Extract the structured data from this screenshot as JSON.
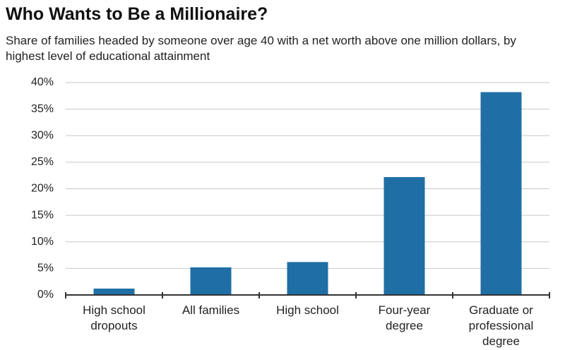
{
  "chart_data": {
    "type": "bar",
    "title": "Who Wants to Be a Millionaire?",
    "subtitle": "Share of families headed by someone over age 40 with a net worth above one million dollars, by highest level of educational attainment",
    "categories": [
      "High school dropouts",
      "All families",
      "High school",
      "Four-year degree",
      "Graduate or professional degree"
    ],
    "values": [
      1.2,
      5.2,
      6.2,
      22.2,
      38.2
    ],
    "color": "#1f6fa5",
    "ylim": [
      0,
      40
    ],
    "yticks": [
      {
        "value": 0,
        "label": "0%"
      },
      {
        "value": 5,
        "label": "5%"
      },
      {
        "value": 10,
        "label": "10%"
      },
      {
        "value": 15,
        "label": "15%"
      },
      {
        "value": 20,
        "label": "20%"
      },
      {
        "value": 25,
        "label": "25%"
      },
      {
        "value": 30,
        "label": "30%"
      },
      {
        "value": 35,
        "label": "35%"
      },
      {
        "value": 40,
        "label": "40%"
      }
    ],
    "grid": true
  }
}
